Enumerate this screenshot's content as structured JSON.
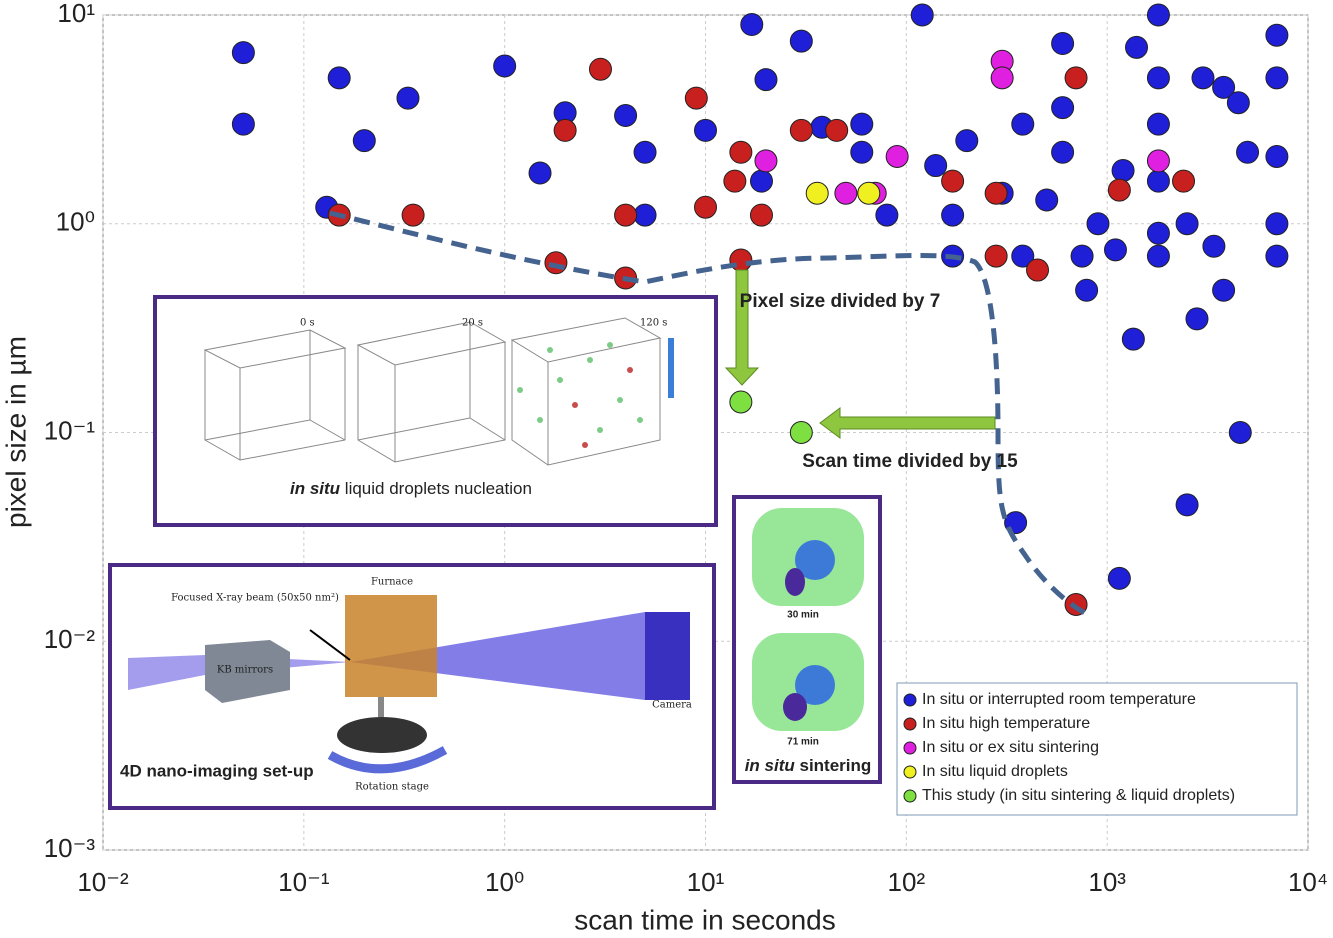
{
  "chart_data": {
    "type": "scatter",
    "xlabel": "scan time in seconds",
    "ylabel": "pixel size in µm",
    "log_x": true,
    "log_y": true,
    "grid": true,
    "xlim": [
      0.01,
      10000
    ],
    "ylim": [
      0.001,
      10
    ],
    "xticks": [
      {
        "value": 0.01,
        "label": "10⁻²"
      },
      {
        "value": 0.1,
        "label": "10⁻¹"
      },
      {
        "value": 1,
        "label": "10⁰"
      },
      {
        "value": 10,
        "label": "10¹"
      },
      {
        "value": 100,
        "label": "10²"
      },
      {
        "value": 1000,
        "label": "10³"
      },
      {
        "value": 10000,
        "label": "10⁴"
      }
    ],
    "yticks": [
      {
        "value": 0.001,
        "label": "10⁻³"
      },
      {
        "value": 0.01,
        "label": "10⁻²"
      },
      {
        "value": 0.1,
        "label": "10⁻¹"
      },
      {
        "value": 1,
        "label": "10⁰"
      },
      {
        "value": 10,
        "label": "10¹"
      }
    ],
    "legend_position": "lower right",
    "series": [
      {
        "name": "In situ or interrupted room temperature",
        "color": "#1f1fd8",
        "x": [
          0.05,
          0.05,
          0.13,
          0.15,
          0.2,
          0.33,
          1.0,
          1.5,
          2,
          4,
          5,
          5,
          10,
          17,
          20,
          30,
          19,
          38,
          60,
          60,
          80,
          120,
          140,
          200,
          170,
          170,
          300,
          380,
          350,
          380,
          500,
          600,
          600,
          600,
          750,
          790,
          900,
          1100,
          1150,
          1200,
          1350,
          1400,
          1800,
          1800,
          1800,
          1800,
          1800,
          1800,
          2500,
          2500,
          2800,
          3000,
          3400,
          3800,
          3800,
          4500,
          4600,
          5000,
          7000,
          7000,
          7000,
          7000,
          7000
        ],
        "values": [
          6.6,
          3.0,
          1.2,
          5.0,
          2.5,
          4.0,
          5.7,
          1.75,
          3.4,
          3.3,
          2.2,
          1.1,
          2.8,
          9.0,
          4.9,
          7.5,
          1.6,
          2.9,
          3.0,
          2.2,
          1.1,
          10,
          1.9,
          2.5,
          1.1,
          0.7,
          1.4,
          0.7,
          0.037,
          3.0,
          1.3,
          2.2,
          3.6,
          7.3,
          0.7,
          0.48,
          1.0,
          0.75,
          0.02,
          1.8,
          0.28,
          7.0,
          10,
          5.0,
          3.0,
          1.6,
          0.7,
          0.9,
          0.045,
          1.0,
          0.35,
          5.0,
          0.78,
          4.5,
          0.48,
          3.8,
          0.1,
          2.2,
          8.0,
          5.0,
          2.1,
          1.0,
          0.7
        ]
      },
      {
        "name": "In situ high temperature",
        "color": "#c8201e",
        "x": [
          0.15,
          0.35,
          1.8,
          3,
          2,
          4,
          4,
          9,
          10,
          14,
          15,
          15,
          19,
          30,
          45,
          170,
          280,
          280,
          450,
          700,
          700,
          1150,
          2400
        ],
        "values": [
          1.1,
          1.1,
          0.65,
          5.5,
          2.8,
          0.55,
          1.1,
          4.0,
          1.2,
          1.6,
          2.2,
          0.67,
          1.1,
          2.8,
          2.8,
          1.6,
          1.4,
          0.7,
          0.6,
          5.0,
          0.015,
          1.45,
          1.6
        ]
      },
      {
        "name": "In situ or ex situ sintering",
        "color": "#e020e0",
        "x": [
          20,
          90,
          300,
          300,
          1800,
          50,
          70
        ],
        "values": [
          2.0,
          2.1,
          6.0,
          5.0,
          2.0,
          1.4,
          1.4
        ]
      },
      {
        "name": "In situ liquid droplets",
        "color": "#f0f020",
        "x": [
          36,
          65
        ],
        "values": [
          1.4,
          1.4
        ]
      },
      {
        "name": "This study (in situ sintering & liquid droplets)",
        "color": "#7ee040",
        "x": [
          15,
          30
        ],
        "values": [
          0.14,
          0.1
        ]
      }
    ],
    "annotations": {
      "pixel_arrow": "Pixel size divided by 7",
      "time_arrow": "Scan time divided by 15"
    },
    "insets": {
      "nucleation": {
        "times": [
          "0 s",
          "20 s",
          "120 s"
        ],
        "title_italic": "in situ",
        "title_rest": "liquid droplets nucleation"
      },
      "setup": {
        "beam": "Focused X-ray beam (50x50 nm²)",
        "furnace": "Furnace",
        "mirrors": "KB mirrors",
        "camera": "Camera",
        "stage": "Rotation stage",
        "title": "4D nano-imaging  set-up"
      },
      "sintering": {
        "times": [
          "30 min",
          "71 min"
        ],
        "title_italic": "in situ",
        "title_rest": "sintering"
      }
    }
  }
}
